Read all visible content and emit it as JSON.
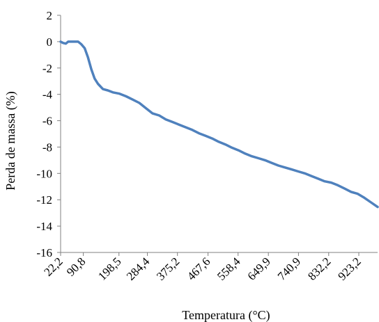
{
  "chart_data": {
    "type": "line",
    "title": "",
    "xlabel": "Temperatura (°C)",
    "ylabel": "Perda de massa (%)",
    "ylim": [
      -16,
      2
    ],
    "yticks": [
      2,
      0,
      -2,
      -4,
      -6,
      -8,
      -10,
      -12,
      -14,
      -16
    ],
    "xlim": [
      22.2,
      980
    ],
    "x_tick_labels": [
      "22,2",
      "90,8",
      "198,5",
      "284,4",
      "375,2",
      "467,6",
      "558,4",
      "649,9",
      "740,9",
      "832,2",
      "923,2"
    ],
    "x_tick_values": [
      22.2,
      90.8,
      198.5,
      284.4,
      375.2,
      467.6,
      558.4,
      649.9,
      740.9,
      832.2,
      923.2
    ],
    "grid": false,
    "legend": "none",
    "line_color": "#4f81bd",
    "series": [
      {
        "x": [
          22.2,
          30,
          38,
          45,
          55,
          65,
          75,
          85,
          95,
          105,
          115,
          125,
          135,
          150,
          165,
          180,
          200,
          220,
          240,
          260,
          280,
          300,
          320,
          340,
          360,
          380,
          400,
          420,
          440,
          460,
          480,
          500,
          520,
          540,
          560,
          580,
          600,
          620,
          640,
          660,
          680,
          700,
          720,
          740,
          760,
          780,
          800,
          820,
          840,
          860,
          880,
          900,
          920,
          940,
          960,
          980
        ],
        "values": [
          0,
          -0.1,
          -0.15,
          0,
          0,
          0,
          0,
          -0.2,
          -0.5,
          -1.2,
          -2.1,
          -2.8,
          -3.2,
          -3.6,
          -3.7,
          -3.85,
          -3.95,
          -4.15,
          -4.4,
          -4.65,
          -5.05,
          -5.45,
          -5.6,
          -5.9,
          -6.1,
          -6.3,
          -6.5,
          -6.7,
          -6.95,
          -7.15,
          -7.35,
          -7.6,
          -7.8,
          -8.05,
          -8.25,
          -8.5,
          -8.7,
          -8.85,
          -9.0,
          -9.2,
          -9.4,
          -9.55,
          -9.7,
          -9.85,
          -10.0,
          -10.2,
          -10.4,
          -10.6,
          -10.7,
          -10.9,
          -11.15,
          -11.4,
          -11.55,
          -11.85,
          -12.2,
          -12.55
        ]
      }
    ]
  }
}
